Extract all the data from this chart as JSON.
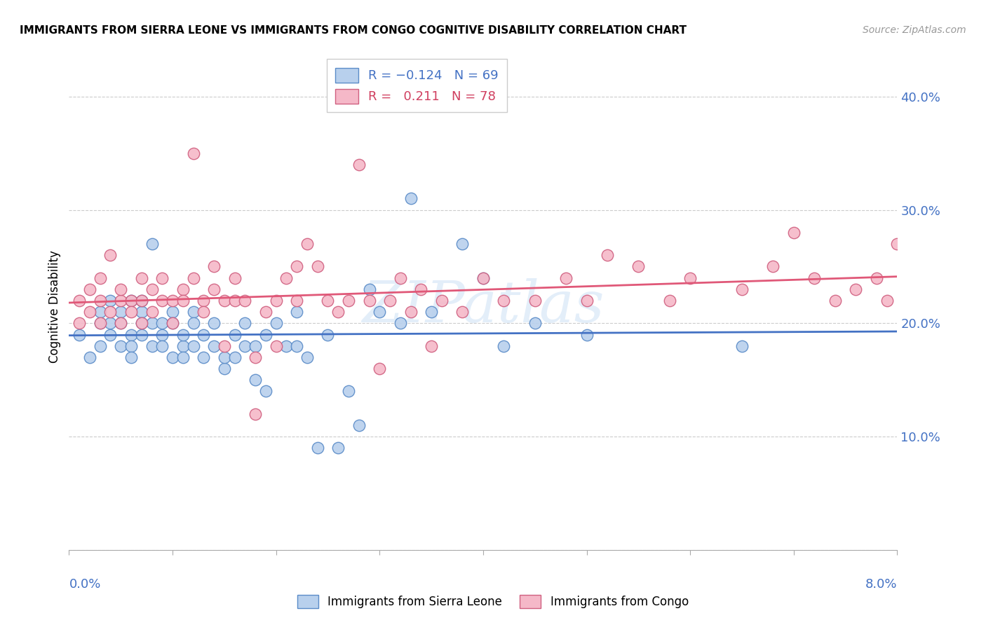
{
  "title": "IMMIGRANTS FROM SIERRA LEONE VS IMMIGRANTS FROM CONGO COGNITIVE DISABILITY CORRELATION CHART",
  "source": "Source: ZipAtlas.com",
  "ylabel": "Cognitive Disability",
  "yticks": [
    0.0,
    0.1,
    0.2,
    0.3,
    0.4
  ],
  "ytick_labels": [
    "",
    "10.0%",
    "20.0%",
    "30.0%",
    "40.0%"
  ],
  "xmin": 0.0,
  "xmax": 0.08,
  "ymin": 0.0,
  "ymax": 0.43,
  "sierra_leone_color": "#b8d0ed",
  "sierra_leone_edge": "#5b8cc8",
  "sierra_leone_line": "#4472c4",
  "congo_color": "#f5b8c8",
  "congo_edge": "#d06080",
  "congo_line": "#e05878",
  "watermark": "ZIPatlas",
  "sierra_leone_x": [
    0.001,
    0.002,
    0.003,
    0.003,
    0.003,
    0.004,
    0.004,
    0.004,
    0.005,
    0.005,
    0.005,
    0.006,
    0.006,
    0.006,
    0.006,
    0.007,
    0.007,
    0.007,
    0.007,
    0.008,
    0.008,
    0.008,
    0.009,
    0.009,
    0.009,
    0.01,
    0.01,
    0.01,
    0.011,
    0.011,
    0.011,
    0.012,
    0.012,
    0.012,
    0.013,
    0.013,
    0.014,
    0.014,
    0.015,
    0.015,
    0.016,
    0.016,
    0.017,
    0.017,
    0.018,
    0.018,
    0.019,
    0.019,
    0.02,
    0.021,
    0.022,
    0.022,
    0.023,
    0.024,
    0.025,
    0.026,
    0.027,
    0.028,
    0.029,
    0.03,
    0.032,
    0.033,
    0.035,
    0.038,
    0.04,
    0.042,
    0.045,
    0.05,
    0.065
  ],
  "sierra_leone_y": [
    0.19,
    0.17,
    0.2,
    0.21,
    0.18,
    0.22,
    0.2,
    0.19,
    0.21,
    0.18,
    0.2,
    0.22,
    0.19,
    0.18,
    0.17,
    0.21,
    0.2,
    0.19,
    0.22,
    0.18,
    0.27,
    0.2,
    0.19,
    0.18,
    0.2,
    0.21,
    0.17,
    0.2,
    0.18,
    0.17,
    0.19,
    0.21,
    0.18,
    0.2,
    0.19,
    0.17,
    0.2,
    0.18,
    0.16,
    0.17,
    0.19,
    0.17,
    0.2,
    0.18,
    0.15,
    0.18,
    0.19,
    0.14,
    0.2,
    0.18,
    0.21,
    0.18,
    0.17,
    0.09,
    0.19,
    0.09,
    0.14,
    0.11,
    0.23,
    0.21,
    0.2,
    0.31,
    0.21,
    0.27,
    0.24,
    0.18,
    0.2,
    0.19,
    0.18
  ],
  "congo_x": [
    0.001,
    0.001,
    0.002,
    0.002,
    0.003,
    0.003,
    0.003,
    0.004,
    0.004,
    0.005,
    0.005,
    0.005,
    0.006,
    0.006,
    0.007,
    0.007,
    0.007,
    0.008,
    0.008,
    0.009,
    0.009,
    0.01,
    0.01,
    0.011,
    0.011,
    0.012,
    0.012,
    0.013,
    0.013,
    0.014,
    0.014,
    0.015,
    0.015,
    0.016,
    0.016,
    0.017,
    0.018,
    0.018,
    0.019,
    0.02,
    0.02,
    0.021,
    0.022,
    0.022,
    0.023,
    0.024,
    0.025,
    0.026,
    0.027,
    0.028,
    0.029,
    0.03,
    0.031,
    0.032,
    0.033,
    0.034,
    0.035,
    0.036,
    0.038,
    0.04,
    0.042,
    0.045,
    0.048,
    0.05,
    0.052,
    0.055,
    0.058,
    0.06,
    0.065,
    0.068,
    0.07,
    0.072,
    0.074,
    0.076,
    0.078,
    0.079,
    0.08
  ],
  "congo_y": [
    0.22,
    0.2,
    0.23,
    0.21,
    0.22,
    0.24,
    0.2,
    0.26,
    0.21,
    0.22,
    0.23,
    0.2,
    0.22,
    0.21,
    0.24,
    0.22,
    0.2,
    0.23,
    0.21,
    0.22,
    0.24,
    0.22,
    0.2,
    0.23,
    0.22,
    0.35,
    0.24,
    0.22,
    0.21,
    0.25,
    0.23,
    0.18,
    0.22,
    0.24,
    0.22,
    0.22,
    0.17,
    0.12,
    0.21,
    0.22,
    0.18,
    0.24,
    0.25,
    0.22,
    0.27,
    0.25,
    0.22,
    0.21,
    0.22,
    0.34,
    0.22,
    0.16,
    0.22,
    0.24,
    0.21,
    0.23,
    0.18,
    0.22,
    0.21,
    0.24,
    0.22,
    0.22,
    0.24,
    0.22,
    0.26,
    0.25,
    0.22,
    0.24,
    0.23,
    0.25,
    0.28,
    0.24,
    0.22,
    0.23,
    0.24,
    0.22,
    0.27
  ]
}
